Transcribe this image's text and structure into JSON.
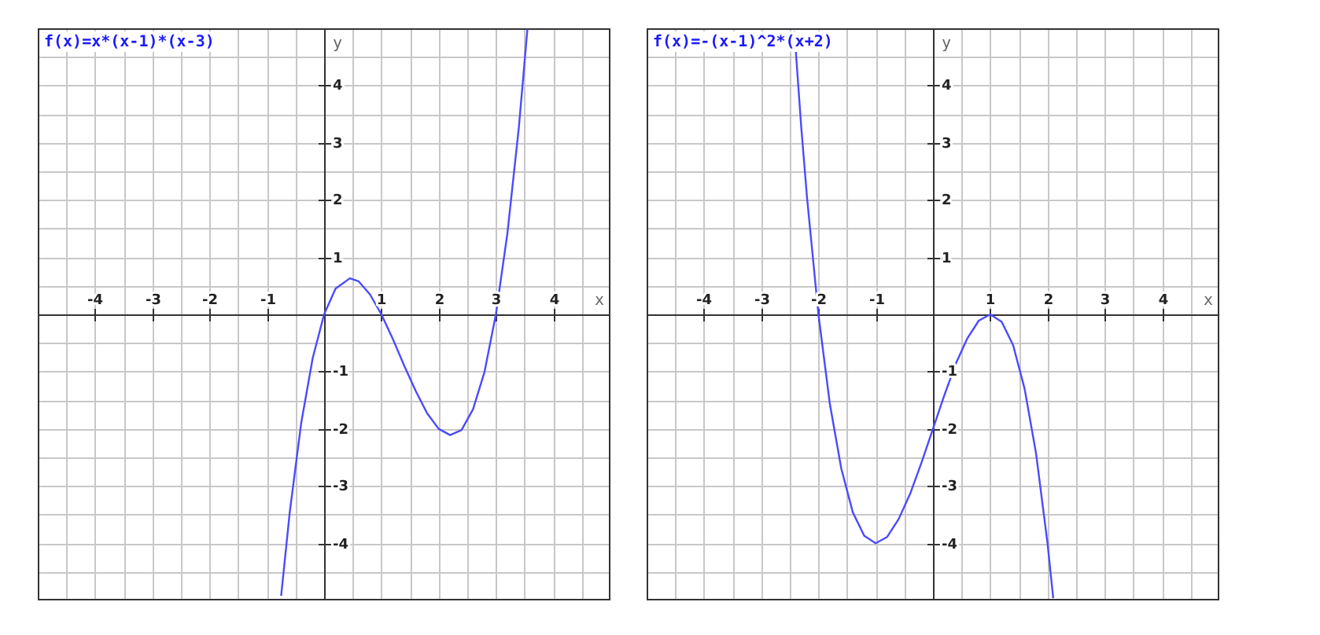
{
  "chart_data": [
    {
      "type": "line",
      "title": "f(x)=x*(x-1)*(x-3)",
      "xlabel": "x",
      "ylabel": "y",
      "x": [
        -0.75,
        -0.6,
        -0.4,
        -0.2,
        0,
        0.2,
        0.45,
        0.6,
        0.8,
        1,
        1.2,
        1.4,
        1.6,
        1.8,
        2,
        2.2,
        2.4,
        2.6,
        2.8,
        3,
        3.2,
        3.4,
        3.55
      ],
      "series": [
        {
          "color": "#4b4bff",
          "values": [
            -4.92,
            -3.46,
            -1.9,
            -0.77,
            0,
            0.45,
            0.63,
            0.58,
            0.35,
            0,
            -0.43,
            -0.9,
            -1.34,
            -1.73,
            -2,
            -2.11,
            -2.02,
            -1.66,
            -1.01,
            0,
            1.41,
            3.26,
            4.98
          ]
        }
      ],
      "xlim": [
        -5,
        5
      ],
      "ylim": [
        -5,
        5
      ],
      "xticks": [
        {
          "value": -4.5,
          "label": null
        },
        -4,
        {
          "value": -3.5,
          "label": null
        },
        -3,
        {
          "value": -2.5,
          "label": null
        },
        -2,
        {
          "value": -1.5,
          "label": null
        },
        -1,
        {
          "value": -0.5,
          "label": null
        },
        {
          "value": 0,
          "label": null
        },
        {
          "value": 0.5,
          "label": null
        },
        1,
        {
          "value": 1.5,
          "label": null
        },
        2,
        {
          "value": 2.5,
          "label": null
        },
        3,
        {
          "value": 3.5,
          "label": null
        },
        4,
        {
          "value": 4.5,
          "label": null
        }
      ],
      "yticks": [
        {
          "value": -4.5,
          "label": null
        },
        -4,
        {
          "value": -3.5,
          "label": null
        },
        -3,
        {
          "value": -2.5,
          "label": null
        },
        -2,
        {
          "value": -1.5,
          "label": null
        },
        -1,
        {
          "value": -0.5,
          "label": null
        },
        {
          "value": 0,
          "label": null
        },
        {
          "value": 0.5,
          "label": null
        },
        1,
        {
          "value": 1.5,
          "label": null
        },
        2,
        {
          "value": 2.5,
          "label": null
        },
        3,
        {
          "value": 3.5,
          "label": null
        },
        4,
        {
          "value": 4.5,
          "label": null
        }
      ],
      "grid": true,
      "marker": "none"
    },
    {
      "type": "line",
      "title": "f(x)=-(x-1)^2*(x+2)",
      "xlabel": "x",
      "ylabel": "y",
      "x": [
        -2.42,
        -2.3,
        -2.2,
        -2,
        -1.8,
        -1.6,
        -1.4,
        -1.2,
        -1,
        -0.8,
        -0.6,
        -0.4,
        -0.2,
        0,
        0.2,
        0.4,
        0.6,
        0.8,
        1,
        1.2,
        1.4,
        1.6,
        1.8,
        2,
        2.1
      ],
      "series": [
        {
          "color": "#4b4bff",
          "values": [
            4.95,
            3.27,
            2.05,
            0,
            -1.57,
            -2.7,
            -3.46,
            -3.87,
            -4,
            -3.89,
            -3.58,
            -3.14,
            -2.59,
            -2,
            -1.41,
            -0.86,
            -0.42,
            -0.11,
            0,
            -0.13,
            -0.54,
            -1.3,
            -2.43,
            -4,
            -4.96
          ]
        }
      ],
      "xlim": [
        -5,
        5
      ],
      "ylim": [
        -5,
        5
      ],
      "xticks": [
        {
          "value": -4.5,
          "label": null
        },
        -4,
        {
          "value": -3.5,
          "label": null
        },
        -3,
        {
          "value": -2.5,
          "label": null
        },
        -2,
        {
          "value": -1.5,
          "label": null
        },
        -1,
        {
          "value": -0.5,
          "label": null
        },
        {
          "value": 0,
          "label": null
        },
        {
          "value": 0.5,
          "label": null
        },
        1,
        {
          "value": 1.5,
          "label": null
        },
        2,
        {
          "value": 2.5,
          "label": null
        },
        3,
        {
          "value": 3.5,
          "label": null
        },
        4,
        {
          "value": 4.5,
          "label": null
        }
      ],
      "yticks": [
        {
          "value": -4.5,
          "label": null
        },
        -4,
        {
          "value": -3.5,
          "label": null
        },
        -3,
        {
          "value": -2.5,
          "label": null
        },
        -2,
        {
          "value": -1.5,
          "label": null
        },
        -1,
        {
          "value": -0.5,
          "label": null
        },
        {
          "value": 0,
          "label": null
        },
        {
          "value": 0.5,
          "label": null
        },
        1,
        {
          "value": 1.5,
          "label": null
        },
        2,
        {
          "value": 2.5,
          "label": null
        },
        3,
        {
          "value": 3.5,
          "label": null
        },
        4,
        {
          "value": 4.5,
          "label": null
        }
      ],
      "grid": true,
      "marker": "none"
    }
  ]
}
